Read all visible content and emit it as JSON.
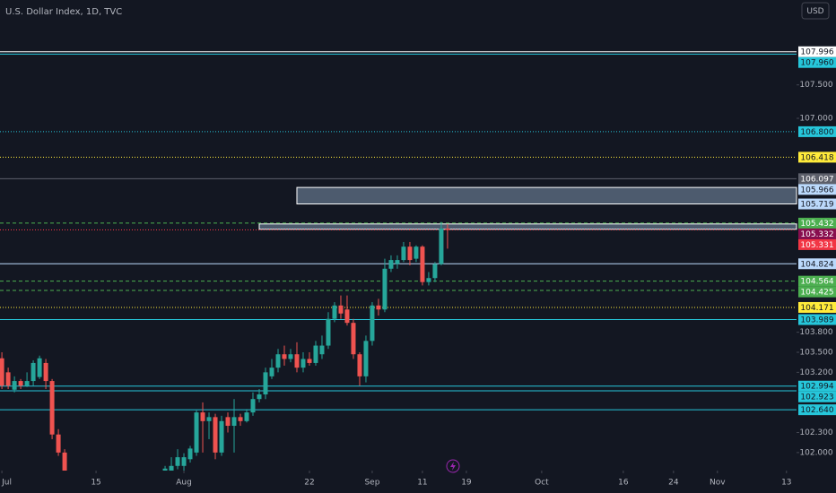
{
  "chart_data": {
    "type": "candlestick",
    "title": "U.S. Dollar Index, 1D, TVC",
    "currency": "USD",
    "up_color": "#26a69a",
    "down_color": "#ef5350",
    "x": [
      0,
      1,
      2,
      3,
      4,
      5,
      6,
      7,
      8,
      9,
      10,
      26,
      27,
      28,
      29,
      30,
      31,
      32,
      33,
      34,
      35,
      36,
      37,
      38,
      39,
      40,
      41,
      42,
      43,
      44,
      45,
      46,
      47,
      48,
      49,
      50,
      51,
      52,
      53,
      54,
      55,
      56,
      57,
      58,
      59,
      60,
      61,
      62,
      63,
      64,
      65,
      66,
      67,
      68,
      69,
      70,
      71
    ],
    "open": [
      103.41,
      103.2,
      102.94,
      103.07,
      103.0,
      103.07,
      103.13,
      103.34,
      103.07,
      102.27,
      102.0,
      101.7,
      101.7,
      101.8,
      101.8,
      101.9,
      102.0,
      102.6,
      102.47,
      102.53,
      102.0,
      102.53,
      102.4,
      102.53,
      102.47,
      102.6,
      102.8,
      102.87,
      103.14,
      103.27,
      103.47,
      103.4,
      103.47,
      103.27,
      103.4,
      103.34,
      103.47,
      103.6,
      104.0,
      104.2,
      104.14,
      103.94,
      103.47,
      103.14,
      103.67,
      104.2,
      104.14,
      104.75,
      104.82,
      104.88,
      105.08,
      104.9,
      105.08,
      104.55,
      104.61,
      104.82,
      105.35
    ],
    "high": [
      103.5,
      103.27,
      103.14,
      103.1,
      103.2,
      103.38,
      103.45,
      103.4,
      103.1,
      102.35,
      102.05,
      101.8,
      101.93,
      102.05,
      101.99,
      102.1,
      102.63,
      102.75,
      102.6,
      102.58,
      102.55,
      102.6,
      102.8,
      102.58,
      102.65,
      102.9,
      102.95,
      103.27,
      103.4,
      103.55,
      103.6,
      103.55,
      103.65,
      103.5,
      103.5,
      103.67,
      103.75,
      104.1,
      104.25,
      104.35,
      104.35,
      104.0,
      103.5,
      103.75,
      104.25,
      104.3,
      104.9,
      104.95,
      104.95,
      105.15,
      105.15,
      105.1,
      105.1,
      104.7,
      104.85,
      105.45,
      105.42
    ],
    "low": [
      102.95,
      102.95,
      102.9,
      102.95,
      102.98,
      103.0,
      103.1,
      102.95,
      102.2,
      101.95,
      101.7,
      101.65,
      101.65,
      101.75,
      101.7,
      101.85,
      101.95,
      102.0,
      102.2,
      101.9,
      101.95,
      102.3,
      102.0,
      102.4,
      102.45,
      102.55,
      102.75,
      102.8,
      103.1,
      103.2,
      103.3,
      103.35,
      103.2,
      103.2,
      103.3,
      103.3,
      103.4,
      103.55,
      103.95,
      104.0,
      103.9,
      103.4,
      103.0,
      103.05,
      103.6,
      104.05,
      104.1,
      104.7,
      104.75,
      104.85,
      104.8,
      104.85,
      104.5,
      104.5,
      104.55,
      104.8,
      105.05
    ],
    "close": [
      103.0,
      103.0,
      103.07,
      103.0,
      103.07,
      103.34,
      103.41,
      103.07,
      102.27,
      102.0,
      101.73,
      101.76,
      101.8,
      101.93,
      101.93,
      102.06,
      102.6,
      102.47,
      102.53,
      102.0,
      102.47,
      102.4,
      102.53,
      102.47,
      102.6,
      102.8,
      102.87,
      103.2,
      103.27,
      103.47,
      103.4,
      103.47,
      103.27,
      103.4,
      103.34,
      103.6,
      103.6,
      104.0,
      104.2,
      104.08,
      103.94,
      103.47,
      103.14,
      103.67,
      104.2,
      104.14,
      104.75,
      104.88,
      104.88,
      105.08,
      104.88,
      105.08,
      104.55,
      104.61,
      104.82,
      105.35,
      105.33
    ],
    "xlim": [
      -0.3,
      126.6
    ],
    "xticks": [
      {
        "value": 0,
        "label": "Jul"
      },
      15,
      {
        "value": 29,
        "label": "Aug"
      },
      {
        "value": 49,
        "label": "22"
      },
      {
        "value": 59,
        "label": "Sep"
      },
      {
        "value": 67,
        "label": "11"
      },
      {
        "value": 74,
        "label": "19"
      },
      {
        "value": 86,
        "label": "Oct"
      },
      {
        "value": 99,
        "label": "16"
      },
      {
        "value": 107,
        "label": "24"
      },
      {
        "value": 114,
        "label": "Nov"
      },
      {
        "value": 125,
        "label": "13"
      }
    ],
    "ylim": [
      101.73,
      108.77
    ],
    "yticks": [
      {
        "value": 102,
        "label": "102.000"
      },
      {
        "value": 102.3,
        "label": "102.300"
      },
      {
        "value": 103.2,
        "label": "103.200"
      },
      {
        "value": 103.5,
        "label": "103.500"
      },
      {
        "value": 103.8,
        "label": "103.800"
      },
      {
        "value": 107,
        "label": "107.000"
      },
      {
        "value": 107.5,
        "label": "107.500"
      }
    ],
    "zones": [
      {
        "x": 47,
        "high": 105.966,
        "low": 105.719,
        "color": "#bbd9fb"
      },
      {
        "x": 41,
        "high": 105.42,
        "low": 105.34,
        "color": "#bbd9fb"
      }
    ],
    "levels": [
      {
        "value": 107.996,
        "color": "#ffffff",
        "style": "solid"
      },
      {
        "value": 107.96,
        "label": "107.960",
        "color": "#26c6da",
        "style": "solid"
      },
      {
        "value": 106.8,
        "label": "106.800",
        "color": "#26c6da",
        "style": "dotted"
      },
      {
        "value": 106.418,
        "color": "#ffeb3b",
        "style": "dotted"
      },
      {
        "value": 106.097,
        "color": "#5d606b",
        "style": "solid"
      },
      {
        "value": 105.432,
        "color": "#4caf50",
        "style": "dashed"
      },
      {
        "value": 105.332,
        "color": "#880e4f",
        "style": "dotted"
      },
      {
        "value": 105.331,
        "color": "#f23645",
        "style": "dotted"
      },
      {
        "value": 104.824,
        "color": "#bbd9fb",
        "style": "solid"
      },
      {
        "value": 104.564,
        "color": "#4caf50",
        "style": "dashed"
      },
      {
        "value": 104.425,
        "color": "#4caf50",
        "style": "dashed"
      },
      {
        "value": 104.171,
        "color": "#ffeb3b",
        "style": "dotted"
      },
      {
        "value": 103.989,
        "color": "#26c6da",
        "style": "solid"
      },
      {
        "value": 102.994,
        "color": "#26c6da",
        "style": "solid"
      },
      {
        "value": 102.923,
        "color": "#26c6da",
        "style": "solid"
      },
      {
        "value": 102.64,
        "label": "102.640",
        "color": "#26c6da",
        "style": "solid"
      }
    ]
  }
}
